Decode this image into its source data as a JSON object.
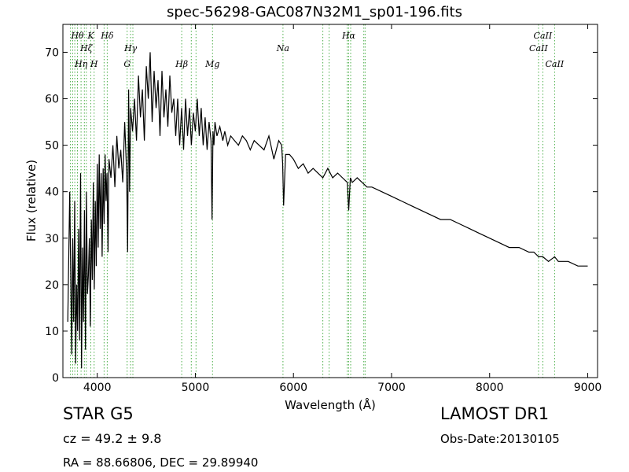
{
  "title": "spec-56298-GAC087N32M1_sp01-196.fits",
  "info": {
    "classification": "STAR   G5",
    "cz": "cz = 49.2  ± 9.8",
    "radec": "RA = 88.66806, DEC = 29.89940",
    "survey": "LAMOST DR1",
    "obs_date": "Obs-Date:20130105"
  },
  "colors": {
    "spectrum": "#000000",
    "line_markers": "#4daf4a"
  },
  "chart_data": {
    "type": "line",
    "title": "spec-56298-GAC087N32M1_sp01-196.fits",
    "xlabel": "Wavelength (Å)",
    "ylabel": "Flux (relative)",
    "xlim": [
      3650,
      9100
    ],
    "ylim": [
      0,
      76
    ],
    "xticks": [
      4000,
      5000,
      6000,
      7000,
      8000,
      9000
    ],
    "yticks": [
      0,
      10,
      20,
      30,
      40,
      50,
      60,
      70
    ],
    "grid": false,
    "series": [
      {
        "x": [
          3700,
          3720,
          3740,
          3750,
          3760,
          3770,
          3780,
          3790,
          3800,
          3810,
          3820,
          3830,
          3840,
          3850,
          3860,
          3870,
          3880,
          3890,
          3900,
          3910,
          3920,
          3930,
          3940,
          3950,
          3960,
          3970,
          3980,
          3990,
          4000,
          4010,
          4020,
          4030,
          4040,
          4050,
          4060,
          4070,
          4080,
          4090,
          4100,
          4110,
          4120,
          4140,
          4160,
          4180,
          4200,
          4220,
          4240,
          4260,
          4280,
          4300,
          4310,
          4320,
          4330,
          4340,
          4360,
          4380,
          4400,
          4420,
          4440,
          4460,
          4480,
          4500,
          4520,
          4540,
          4560,
          4580,
          4600,
          4620,
          4640,
          4660,
          4680,
          4700,
          4720,
          4740,
          4760,
          4780,
          4800,
          4820,
          4840,
          4860,
          4880,
          4900,
          4920,
          4940,
          4960,
          4980,
          5000,
          5020,
          5040,
          5060,
          5080,
          5100,
          5120,
          5140,
          5160,
          5170,
          5180,
          5190,
          5200,
          5220,
          5250,
          5280,
          5300,
          5330,
          5360,
          5400,
          5440,
          5480,
          5520,
          5560,
          5600,
          5650,
          5700,
          5750,
          5800,
          5850,
          5880,
          5890,
          5900,
          5920,
          5960,
          6000,
          6050,
          6100,
          6150,
          6200,
          6250,
          6300,
          6350,
          6400,
          6450,
          6500,
          6550,
          6563,
          6580,
          6600,
          6650,
          6700,
          6750,
          6800,
          6900,
          7000,
          7100,
          7200,
          7300,
          7400,
          7500,
          7600,
          7700,
          7800,
          7900,
          8000,
          8100,
          8200,
          8300,
          8400,
          8450,
          8500,
          8542,
          8600,
          8662,
          8700,
          8800,
          8900,
          9000
        ],
        "values": [
          12,
          40,
          5,
          30,
          12,
          38,
          3,
          20,
          10,
          32,
          8,
          44,
          2,
          28,
          12,
          36,
          6,
          40,
          18,
          22,
          30,
          11,
          34,
          21,
          42,
          19,
          38,
          24,
          46,
          28,
          48,
          32,
          44,
          26,
          45,
          33,
          48,
          38,
          44,
          27,
          47,
          43,
          50,
          41,
          52,
          45,
          49,
          42,
          55,
          44,
          27,
          62,
          40,
          58,
          53,
          60,
          51,
          65,
          56,
          62,
          51,
          67,
          60,
          70,
          55,
          66,
          58,
          64,
          52,
          66,
          56,
          62,
          54,
          65,
          57,
          60,
          52,
          60,
          50,
          58,
          49,
          60,
          52,
          58,
          50,
          57,
          53,
          60,
          52,
          58,
          50,
          56,
          49,
          55,
          51,
          34,
          53,
          50,
          55,
          52,
          54,
          51,
          53,
          50,
          52,
          51,
          50,
          52,
          51,
          49,
          51,
          50,
          49,
          52,
          47,
          51,
          50,
          46,
          37,
          48,
          48,
          47,
          45,
          46,
          44,
          45,
          44,
          43,
          45,
          43,
          44,
          43,
          42,
          36,
          43,
          42,
          43,
          42,
          41,
          41,
          40,
          39,
          38,
          37,
          36,
          35,
          34,
          34,
          33,
          32,
          31,
          30,
          29,
          28,
          28,
          27,
          27,
          26,
          26,
          25,
          26,
          25,
          25,
          24,
          24
        ]
      }
    ],
    "line_labels": [
      {
        "text": "Hθ",
        "x": 3798,
        "row": 0
      },
      {
        "text": "Hη",
        "x": 3835,
        "row": 2
      },
      {
        "text": "Hζ",
        "x": 3889,
        "row": 1
      },
      {
        "text": "K",
        "x": 3934,
        "row": 0
      },
      {
        "text": "H",
        "x": 3968,
        "row": 2
      },
      {
        "text": "Hδ",
        "x": 4102,
        "row": 0
      },
      {
        "text": "Hγ",
        "x": 4340,
        "row": 1
      },
      {
        "text": "G",
        "x": 4305,
        "row": 2
      },
      {
        "text": "Hβ",
        "x": 4861,
        "row": 2
      },
      {
        "text": "Mg",
        "x": 5175,
        "row": 2
      },
      {
        "text": "Na",
        "x": 5893,
        "row": 1
      },
      {
        "text": "Hα",
        "x": 6563,
        "row": 0
      },
      {
        "text": "CaII",
        "x": 8542,
        "row": 0
      },
      {
        "text": "CaII",
        "x": 8498,
        "row": 1
      },
      {
        "text": "CaII",
        "x": 8662,
        "row": 2
      }
    ],
    "marker_lines": [
      3727,
      3750,
      3771,
      3798,
      3835,
      3869,
      3889,
      3934,
      3968,
      4070,
      4102,
      4305,
      4340,
      4363,
      4861,
      4959,
      5007,
      5175,
      5893,
      6300,
      6364,
      6548,
      6563,
      6583,
      6717,
      6731,
      8498,
      8542,
      8662
    ]
  }
}
